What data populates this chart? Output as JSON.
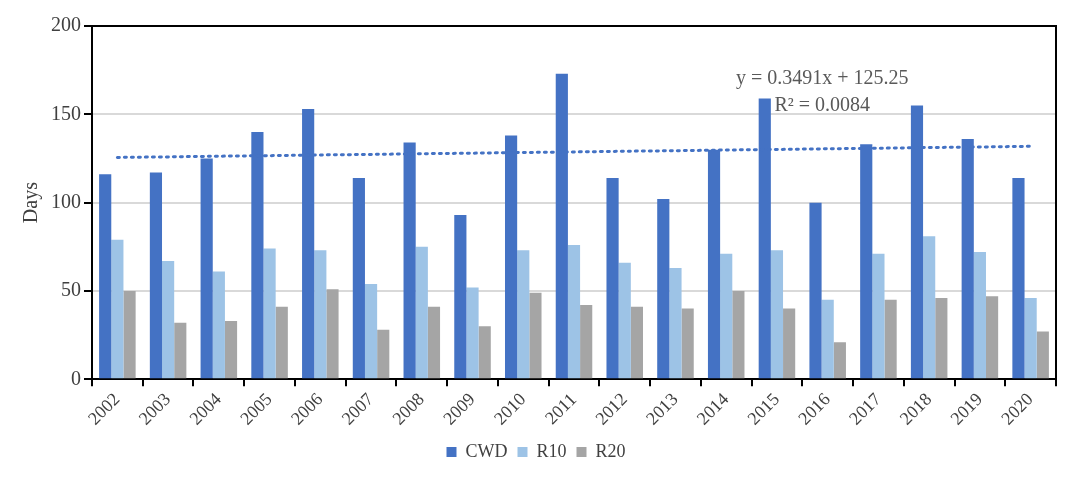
{
  "chart_data": {
    "type": "bar",
    "ylabel": "Days",
    "categories": [
      "2002",
      "2003",
      "2004",
      "2005",
      "2006",
      "2007",
      "2008",
      "2009",
      "2010",
      "2011",
      "2012",
      "2013",
      "2014",
      "2015",
      "2016",
      "2017",
      "2018",
      "2019",
      "2020"
    ],
    "series": [
      {
        "name": "CWD",
        "color": "#4472c4",
        "values": [
          116,
          117,
          125,
          140,
          153,
          114,
          134,
          93,
          138,
          173,
          114,
          102,
          130,
          159,
          100,
          133,
          155,
          136,
          114
        ]
      },
      {
        "name": "R10",
        "color": "#9dc3e6",
        "values": [
          79,
          67,
          61,
          74,
          73,
          54,
          75,
          52,
          73,
          76,
          66,
          63,
          71,
          73,
          45,
          71,
          81,
          72,
          46
        ]
      },
      {
        "name": "R20",
        "color": "#a5a5a5",
        "values": [
          50,
          32,
          33,
          41,
          51,
          28,
          41,
          30,
          49,
          42,
          41,
          40,
          50,
          40,
          21,
          45,
          46,
          47,
          27
        ]
      },
      {
        "type": "line",
        "color": "#4472c4",
        "line_style": "dotted",
        "marker": "none",
        "values": [
          125.6,
          125.9,
          126.3,
          126.6,
          127.0,
          127.3,
          127.7,
          128.0,
          128.4,
          128.7,
          129.1,
          129.4,
          129.8,
          130.1,
          130.5,
          130.8,
          131.2,
          131.5,
          131.9
        ]
      }
    ],
    "ylim": [
      0,
      200
    ],
    "yticks": [
      0,
      50,
      100,
      150,
      200
    ],
    "grid": "y",
    "legend": "bottom",
    "annotations": [
      "y = 0.3491x + 125.25",
      "R² = 0.0084"
    ]
  }
}
